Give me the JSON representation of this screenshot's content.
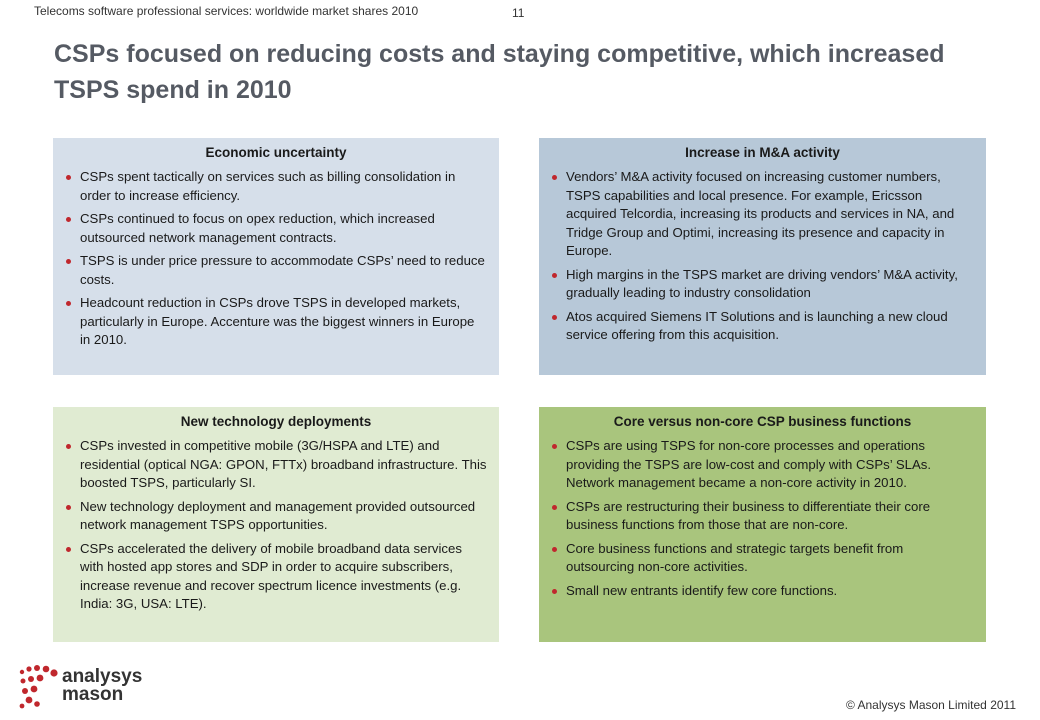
{
  "header": {
    "doc_title": "Telecoms software professional services: worldwide market shares 2010",
    "page_number": "11"
  },
  "title": "CSPs focused on reducing costs and staying competitive, which increased TSPS spend in 2010",
  "panels": [
    {
      "heading": "Economic uncertainty",
      "bullets": [
        "CSPs spent tactically on services such as billing consolidation in order to increase efficiency.",
        "CSPs continued to focus on opex reduction, which increased outsourced network management contracts.",
        "TSPS is under price pressure to accommodate CSPs’ need to reduce costs.",
        "Headcount reduction in CSPs drove TSPS in developed markets, particularly in Europe. Accenture was the biggest winners in Europe in 2010."
      ]
    },
    {
      "heading": "Increase in M&A activity",
      "bullets": [
        "Vendors’ M&A activity focused on increasing customer numbers, TSPS capabilities and local presence. For example, Ericsson acquired Telcordia, increasing its products and services in NA, and Tridge Group and Optimi, increasing its presence and capacity in Europe.",
        "High margins in the TSPS market are driving vendors’ M&A activity, gradually leading to industry consolidation",
        "Atos acquired Siemens IT Solutions and is launching a new cloud service offering from this acquisition."
      ]
    },
    {
      "heading": "New technology deployments",
      "bullets": [
        "CSPs invested in competitive mobile (3G/HSPA and LTE) and residential (optical NGA: GPON, FTTx) broadband infrastructure. This boosted TSPS, particularly SI.",
        "New technology deployment and management provided outsourced network management TSPS opportunities.",
        "CSPs accelerated the delivery of mobile broadband data services with hosted app stores and SDP in order to acquire subscribers, increase revenue and recover spectrum licence investments (e.g. India: 3G, USA: LTE)."
      ]
    },
    {
      "heading": "Core versus non-core CSP business functions",
      "bullets": [
        "CSPs are using TSPS for non-core processes and operations providing the TSPS are low-cost and comply with CSPs’ SLAs. Network management became a non-core activity in 2010.",
        "CSPs are restructuring their business to differentiate their core business functions from those that are non-core.",
        "Core business functions and strategic targets benefit from outsourcing non-core activities.",
        "Small new entrants identify few core functions."
      ]
    }
  ],
  "footer": {
    "logo_line1": "analysys",
    "logo_line2": "mason",
    "copyright": "© Analysys Mason Limited 2011"
  },
  "colors": {
    "bullet": "#c0272d",
    "panel_economic": "#d6dfea",
    "panel_ma": "#b7c8d8",
    "panel_tech": "#e0ebd2",
    "panel_core": "#a9c57d",
    "title": "#555a63"
  }
}
